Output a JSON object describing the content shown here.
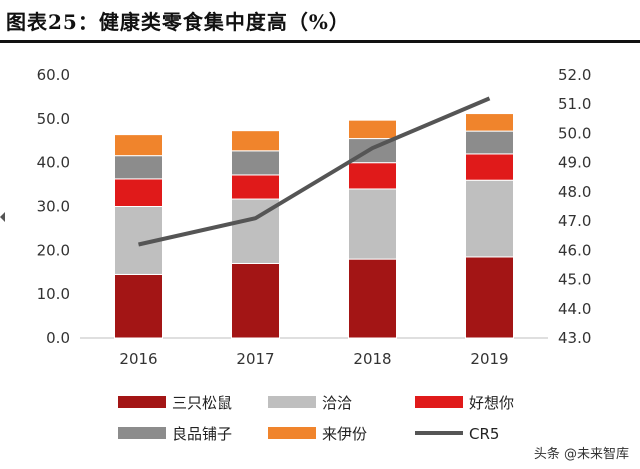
{
  "header": {
    "title": "图表25：健康类零食集中度高（%）"
  },
  "watermark": "头条 @未来智库",
  "chart_data": {
    "type": "bar",
    "stacked": true,
    "categories": [
      "2016",
      "2017",
      "2018",
      "2019"
    ],
    "series": [
      {
        "name": "三只松鼠",
        "values": [
          14.5,
          17.0,
          18.0,
          18.5
        ],
        "color": "#a31515"
      },
      {
        "name": "洽洽",
        "values": [
          15.5,
          14.7,
          16.0,
          17.5
        ],
        "color": "#bfbfbf"
      },
      {
        "name": "好想你",
        "values": [
          6.3,
          5.5,
          6.0,
          6.0
        ],
        "color": "#e01a1a"
      },
      {
        "name": "良品铺子",
        "values": [
          5.3,
          5.5,
          5.5,
          5.2
        ],
        "color": "#8c8c8c"
      },
      {
        "name": "来伊份",
        "values": [
          4.8,
          4.6,
          4.2,
          4.0
        ],
        "color": "#f0842c"
      }
    ],
    "line_series": {
      "name": "CR5",
      "values": [
        46.2,
        47.1,
        49.5,
        51.2
      ],
      "color": "#555555",
      "axis": "right"
    },
    "y_left": {
      "ylim": [
        0,
        60
      ],
      "ticks": [
        "0.0",
        "10.0",
        "20.0",
        "30.0",
        "40.0",
        "50.0",
        "60.0"
      ]
    },
    "y_right": {
      "ylim": [
        43,
        52
      ],
      "ticks": [
        "43.0",
        "44.0",
        "45.0",
        "46.0",
        "47.0",
        "48.0",
        "49.0",
        "50.0",
        "51.0",
        "52.0"
      ]
    },
    "grid": false,
    "legend_placement": "bottom"
  }
}
